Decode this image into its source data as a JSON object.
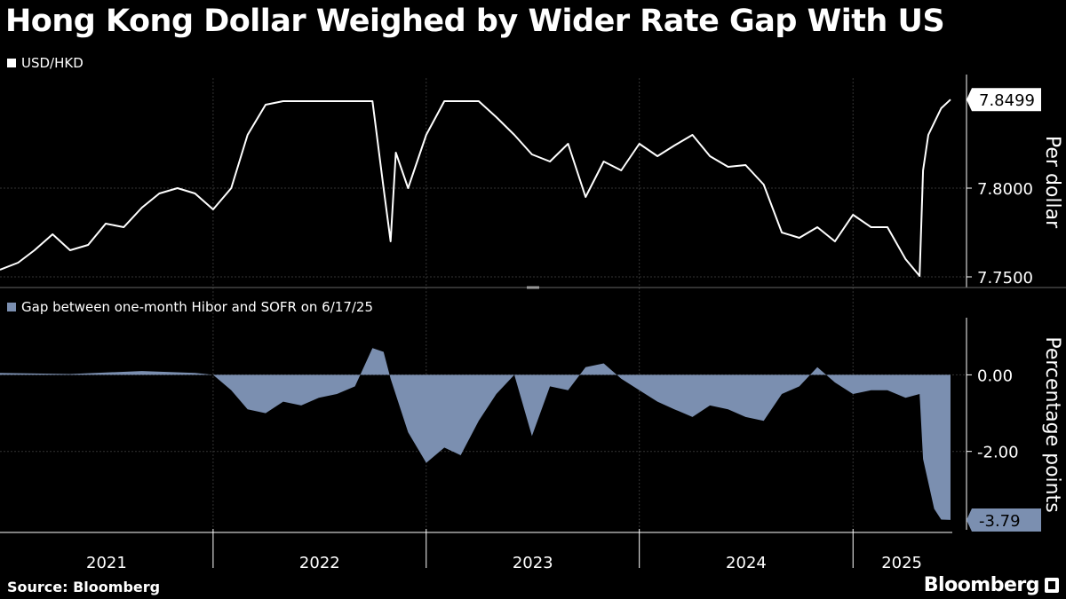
{
  "title": "Hong Kong Dollar Weighed by Wider Rate Gap With US",
  "source": "Source: Bloomberg",
  "brand": "Bloomberg",
  "colors": {
    "fx_line": "#ffffff",
    "gap_area": "#7b8fb0",
    "background": "#000000",
    "axis": "#ffffff"
  },
  "chart_data": [
    {
      "type": "line",
      "legend": "USD/HKD",
      "ylabel": "Per dollar",
      "ylim": [
        7.745,
        7.862
      ],
      "yticks": [
        "7.7500",
        "7.8000"
      ],
      "last_value_label": "7.8499",
      "x_start": "2021-01-01",
      "x_end": "2025-06-17",
      "x_ticks": [
        "2021",
        "2022",
        "2023",
        "2024",
        "2025"
      ],
      "grid": true,
      "series": [
        {
          "name": "USD/HKD",
          "x": [
            "2021-01-01",
            "2021-02-01",
            "2021-03-01",
            "2021-04-01",
            "2021-05-01",
            "2021-06-01",
            "2021-07-01",
            "2021-08-01",
            "2021-09-01",
            "2021-10-01",
            "2021-11-01",
            "2021-12-01",
            "2022-01-01",
            "2022-02-01",
            "2022-03-01",
            "2022-04-01",
            "2022-05-01",
            "2022-06-01",
            "2022-07-01",
            "2022-08-01",
            "2022-09-01",
            "2022-10-01",
            "2022-10-20",
            "2022-11-01",
            "2022-11-10",
            "2022-12-01",
            "2023-01-01",
            "2023-02-01",
            "2023-03-01",
            "2023-04-01",
            "2023-05-01",
            "2023-06-01",
            "2023-07-01",
            "2023-08-01",
            "2023-09-01",
            "2023-10-01",
            "2023-11-01",
            "2023-12-01",
            "2024-01-01",
            "2024-02-01",
            "2024-03-01",
            "2024-04-01",
            "2024-05-01",
            "2024-06-01",
            "2024-07-01",
            "2024-08-01",
            "2024-09-01",
            "2024-10-01",
            "2024-11-01",
            "2024-12-01",
            "2025-01-01",
            "2025-02-01",
            "2025-03-01",
            "2025-04-01",
            "2025-04-25",
            "2025-05-01",
            "2025-05-10",
            "2025-06-01",
            "2025-06-17"
          ],
          "y": [
            7.754,
            7.758,
            7.765,
            7.774,
            7.765,
            7.768,
            7.78,
            7.778,
            7.789,
            7.797,
            7.8,
            7.797,
            7.788,
            7.8,
            7.83,
            7.847,
            7.849,
            7.849,
            7.849,
            7.849,
            7.849,
            7.849,
            7.8,
            7.77,
            7.82,
            7.8,
            7.83,
            7.849,
            7.849,
            7.849,
            7.84,
            7.83,
            7.819,
            7.815,
            7.825,
            7.795,
            7.815,
            7.81,
            7.825,
            7.818,
            7.824,
            7.83,
            7.818,
            7.812,
            7.813,
            7.802,
            7.775,
            7.772,
            7.778,
            7.77,
            7.785,
            7.778,
            7.778,
            7.76,
            7.7505,
            7.81,
            7.83,
            7.845,
            7.8499
          ]
        }
      ]
    },
    {
      "type": "area",
      "legend": "Gap between one-month Hibor and SOFR on 6/17/25",
      "ylabel": "Percentage points",
      "ylim": [
        -4.0,
        1.4
      ],
      "yticks": [
        "0.00",
        "-2.00"
      ],
      "last_value_label": "-3.79",
      "x_start": "2021-01-01",
      "x_end": "2025-06-17",
      "x_ticks": [
        "2021",
        "2022",
        "2023",
        "2024",
        "2025"
      ],
      "grid": true,
      "series": [
        {
          "name": "Gap between one-month Hibor and SOFR",
          "x": [
            "2021-01-01",
            "2021-05-01",
            "2021-09-01",
            "2021-12-01",
            "2022-01-01",
            "2022-02-01",
            "2022-03-01",
            "2022-04-01",
            "2022-05-01",
            "2022-06-01",
            "2022-07-01",
            "2022-08-01",
            "2022-09-01",
            "2022-10-01",
            "2022-10-20",
            "2022-11-01",
            "2022-12-01",
            "2023-01-01",
            "2023-02-01",
            "2023-03-01",
            "2023-04-01",
            "2023-05-01",
            "2023-06-01",
            "2023-07-01",
            "2023-08-01",
            "2023-09-01",
            "2023-10-01",
            "2023-11-01",
            "2023-12-01",
            "2024-01-01",
            "2024-02-01",
            "2024-03-01",
            "2024-04-01",
            "2024-05-01",
            "2024-06-01",
            "2024-07-01",
            "2024-08-01",
            "2024-09-01",
            "2024-10-01",
            "2024-11-01",
            "2024-12-01",
            "2025-01-01",
            "2025-02-01",
            "2025-03-01",
            "2025-04-01",
            "2025-04-25",
            "2025-05-01",
            "2025-05-20",
            "2025-06-01",
            "2025-06-17"
          ],
          "y": [
            0.05,
            0.02,
            0.1,
            0.05,
            0.0,
            -0.4,
            -0.9,
            -1.0,
            -0.7,
            -0.8,
            -0.6,
            -0.5,
            -0.3,
            0.7,
            0.6,
            -0.1,
            -1.5,
            -2.3,
            -1.9,
            -2.1,
            -1.2,
            -0.5,
            0.0,
            -1.6,
            -0.3,
            -0.4,
            0.2,
            0.3,
            -0.1,
            -0.4,
            -0.7,
            -0.9,
            -1.1,
            -0.8,
            -0.9,
            -1.1,
            -1.2,
            -0.5,
            -0.3,
            0.2,
            -0.2,
            -0.5,
            -0.4,
            -0.4,
            -0.6,
            -0.5,
            -2.2,
            -3.5,
            -3.78,
            -3.79
          ]
        }
      ]
    }
  ]
}
